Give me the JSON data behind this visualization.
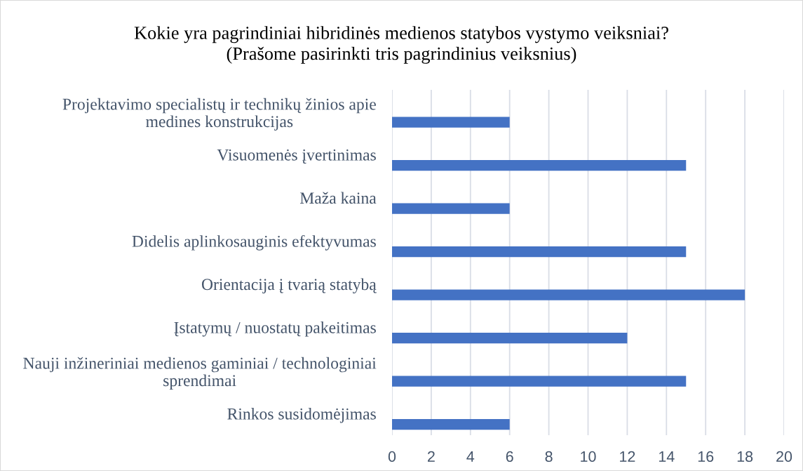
{
  "chart_data": {
    "type": "bar",
    "orientation": "horizontal",
    "title": "Kokie yra pagrindiniai hibridinės medienos statybos vystymo veiksniai?\n(Prašome pasirinkti tris pagrindinius veiksnius)",
    "categories": [
      "Projektavimo specialistų ir technikų žinios apie\nmedines konstrukcijas",
      "Visuomenės įvertinimas",
      "Maža kaina",
      "Didelis aplinkosauginis efektyvumas",
      "Orientacija į tvarią statybą",
      "Įstatymų / nuostatų pakeitimas",
      "Nauji inžineriniai medienos gaminiai / technologiniai\nsprendimai",
      "Rinkos susidomėjimas"
    ],
    "values": [
      6,
      15,
      6,
      15,
      18,
      12,
      15,
      6
    ],
    "color": "#4472c4",
    "xlim": [
      0,
      20
    ],
    "xticks": [
      0,
      2,
      4,
      6,
      8,
      10,
      12,
      14,
      16,
      18,
      20
    ],
    "grid": "x"
  }
}
